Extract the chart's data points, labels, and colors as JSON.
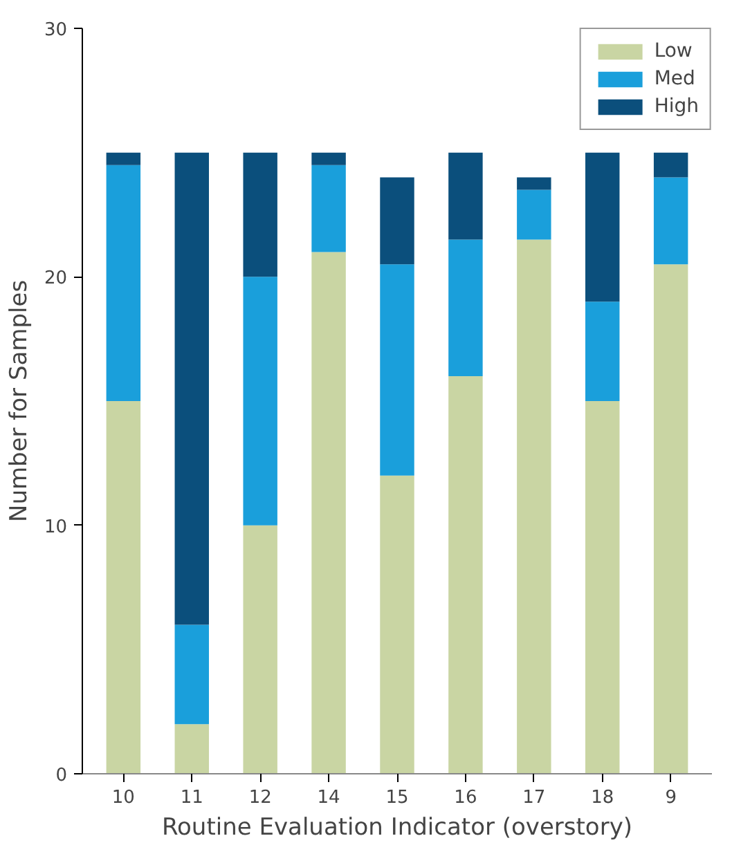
{
  "chart_data": {
    "type": "bar",
    "stacked": true,
    "xlabel": "Routine Evaluation Indicator (overstory)",
    "ylabel": "Number for Samples",
    "categories": [
      "10",
      "11",
      "12",
      "14",
      "15",
      "16",
      "17",
      "18",
      "9"
    ],
    "series": [
      {
        "name": "Low",
        "color": "#c9d5a3",
        "values": [
          15,
          2,
          10,
          21,
          12,
          16,
          21.5,
          15,
          20.5
        ]
      },
      {
        "name": "Med",
        "color": "#1a9fdb",
        "values": [
          9.5,
          4,
          10,
          3.5,
          8.5,
          5.5,
          2,
          4,
          3.5
        ]
      },
      {
        "name": "High",
        "color": "#0b4f7c",
        "values": [
          0.5,
          19,
          5,
          0.5,
          3.5,
          3.5,
          0.5,
          6,
          1
        ]
      }
    ],
    "ylim": [
      0,
      30
    ],
    "yticks": [
      0,
      10,
      20,
      30
    ],
    "grid": false,
    "legend": "top right"
  }
}
